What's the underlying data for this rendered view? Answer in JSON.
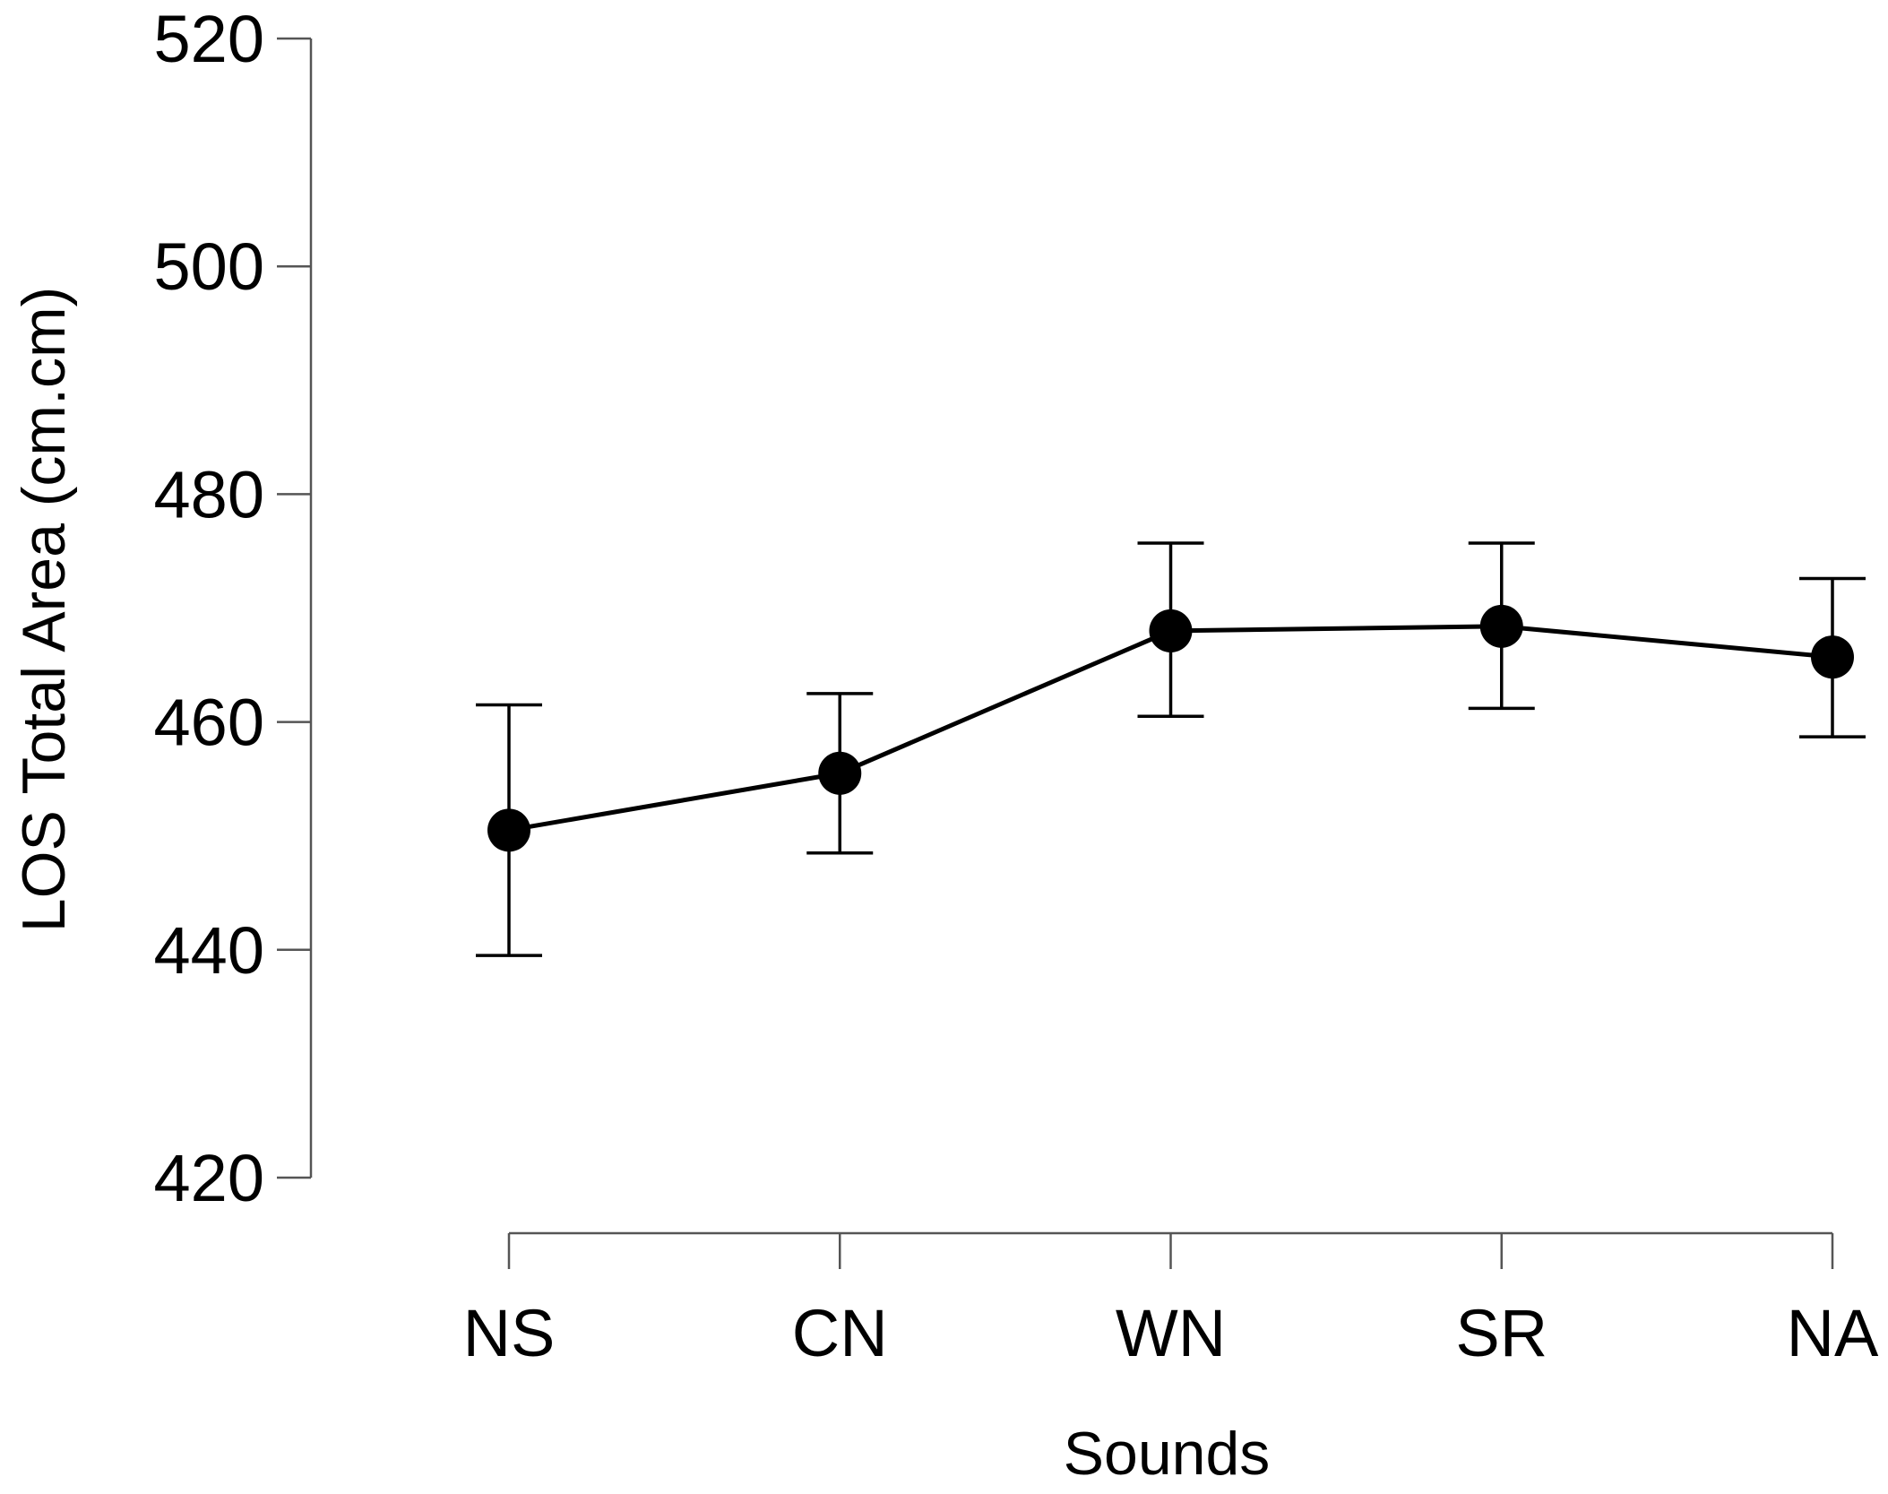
{
  "chart_data": {
    "type": "line",
    "title": "",
    "xlabel": "Sounds",
    "ylabel": "LOS Total Area (cm.cm)",
    "categories": [
      "NS",
      "CN",
      "WN",
      "SR",
      "NA"
    ],
    "ylim": [
      420,
      520
    ],
    "yticks": [
      420,
      440,
      460,
      480,
      500,
      520
    ],
    "grid": false,
    "series": [
      {
        "name": "LOS Total Area",
        "values": [
          450.5,
          455.5,
          468.0,
          468.4,
          465.7
        ],
        "error_low": [
          439.5,
          448.5,
          460.5,
          461.2,
          458.7
        ],
        "error_high": [
          461.5,
          462.5,
          475.7,
          475.7,
          472.6
        ]
      }
    ]
  },
  "colors": {
    "series": "#000000",
    "axis": "#555555",
    "background": "#ffffff"
  }
}
